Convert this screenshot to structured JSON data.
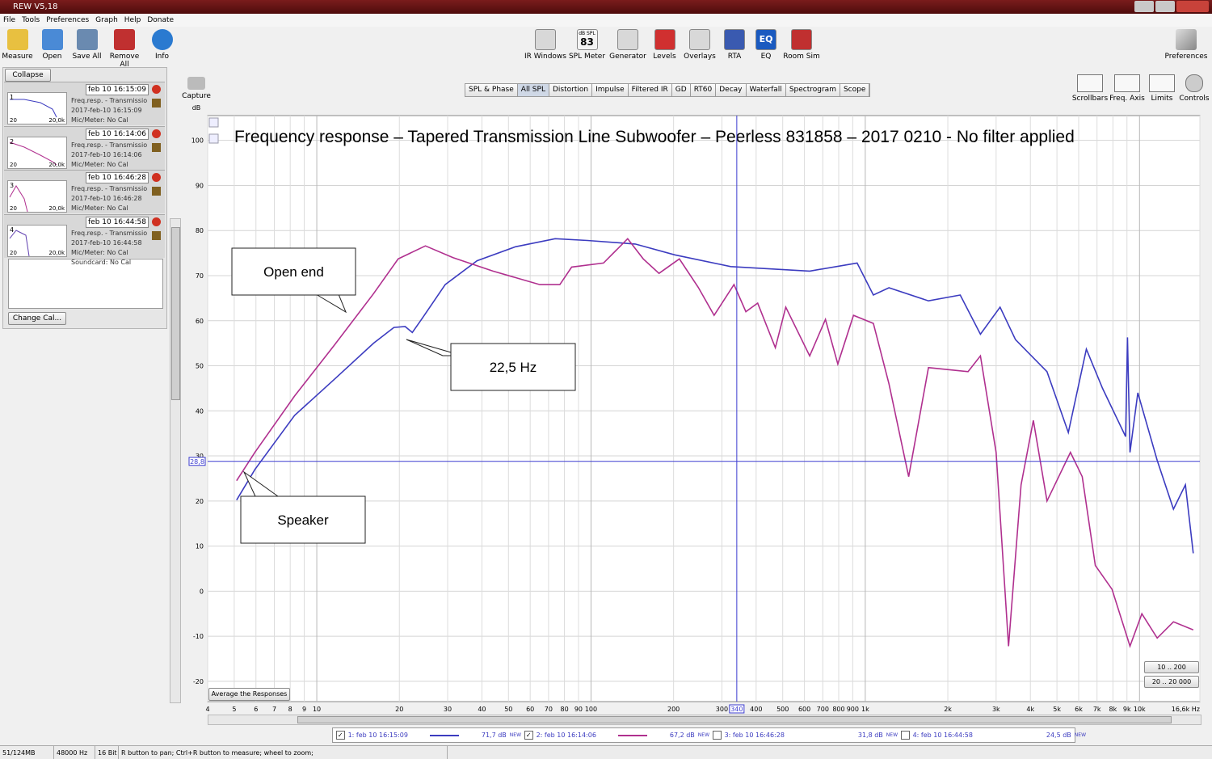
{
  "window_title": "REW V5,18",
  "menu": [
    "File",
    "Tools",
    "Preferences",
    "Graph",
    "Help",
    "Donate"
  ],
  "toolbar_left": [
    "Measure",
    "Open",
    "Save All",
    "Remove All",
    "Info"
  ],
  "toolbar_center": [
    "IR Windows",
    "SPL Meter",
    "Generator",
    "Levels",
    "Overlays",
    "RTA",
    "EQ",
    "Room Sim"
  ],
  "spl_meter_badge": {
    "unit": "dB SPL",
    "value": 83
  },
  "eq_badge": "EQ",
  "toolbar_right": "Preferences",
  "collapse": "Collapse",
  "measurements": [
    {
      "name": "feb 10 16:15:09",
      "index": 1,
      "thumb_min": 20,
      "thumb_max": "20,0k",
      "lines": [
        "Freq.resp. - Transmissio",
        "2017-feb-10 16:15:09",
        "Mic/Meter: No Cal"
      ]
    },
    {
      "name": "feb 10 16:14:06",
      "index": 2,
      "thumb_min": 20,
      "thumb_max": "20,0k",
      "lines": [
        "Freq.resp. - Transmissio",
        "2017-feb-10 16:14:06",
        "Mic/Meter: No Cal"
      ]
    },
    {
      "name": "feb 10 16:46:28",
      "index": 3,
      "thumb_min": 20,
      "thumb_max": "20,0k",
      "lines": [
        "Freq.resp. - Transmissio",
        "2017-feb-10 16:46:28",
        "Mic/Meter: No Cal"
      ]
    },
    {
      "name": "feb 10 16:44:58",
      "index": 4,
      "thumb_min": 20,
      "thumb_max": "20,0k",
      "lines": [
        "Freq.resp. - Transmissio",
        "2017-feb-10 16:44:58",
        "Mic/Meter: No Cal",
        "Soundcard: No Cal"
      ]
    }
  ],
  "change_cal": "Change Cal...",
  "capture": "Capture",
  "tabs": [
    "SPL & Phase",
    "All SPL",
    "Distortion",
    "Impulse",
    "Filtered IR",
    "GD",
    "RT60",
    "Decay",
    "Waterfall",
    "Spectrogram",
    "Scope"
  ],
  "active_tab": "All SPL",
  "graph_tools": [
    "Scrollbars",
    "Freq. Axis",
    "Limits",
    "Controls"
  ],
  "chart_data": {
    "type": "line",
    "title": "Frequency response – Tapered Transmission Line Subwoofer – Peerless 831858 – 2017 0210 - No filter applied",
    "y_unit": "dB",
    "x_log": true,
    "grid": true,
    "xlim": [
      4,
      16600
    ],
    "ylim": [
      -24.5,
      105.5
    ],
    "xticks": [
      4,
      5,
      6,
      7,
      8,
      9,
      10,
      20,
      30,
      40,
      50,
      60,
      70,
      80,
      90,
      100,
      200,
      300,
      400,
      500,
      600,
      700,
      800,
      900,
      {
        "value": 1000,
        "label": "1k"
      },
      {
        "value": 2000,
        "label": "2k"
      },
      {
        "value": 3000,
        "label": "3k"
      },
      {
        "value": 4000,
        "label": "4k"
      },
      {
        "value": 5000,
        "label": "5k"
      },
      {
        "value": 6000,
        "label": "6k"
      },
      {
        "value": 7000,
        "label": "7k"
      },
      {
        "value": 8000,
        "label": "8k"
      },
      {
        "value": 9000,
        "label": "9k"
      },
      {
        "value": 10000,
        "label": "10k"
      },
      {
        "value": 16600,
        "label": "16,6k Hz"
      }
    ],
    "yticks": [
      -20,
      -10,
      0,
      10,
      20,
      30,
      40,
      50,
      60,
      70,
      80,
      90,
      100
    ],
    "series": [
      {
        "name": "1: feb 10 16:15:09",
        "color": "#3c3cc0",
        "checked": true,
        "level_label": "71,7 dB",
        "level_tag": "NEW",
        "x": [
          5.1,
          5.95,
          8.3,
          11.6,
          16.1,
          19.1,
          21,
          22.3,
          24.1,
          29.4,
          38.4,
          53,
          74,
          97,
          145,
          202,
          323,
          627,
          934,
          1070,
          1220,
          1700,
          2220,
          2630,
          3100,
          3530,
          4600,
          5500,
          6400,
          7330,
          8900,
          9040,
          9230,
          9860,
          11600,
          13300,
          14700,
          15700
        ],
        "values": [
          20.2,
          27,
          39,
          47,
          55,
          58.5,
          58.7,
          57.4,
          60.3,
          68,
          73.3,
          76.4,
          78.2,
          77.8,
          77,
          74.6,
          72,
          71,
          72.8,
          65.7,
          67.3,
          64.4,
          65.7,
          57,
          63,
          55.8,
          48.7,
          35.2,
          53.7,
          45,
          34.3,
          56.3,
          30.8,
          44,
          29,
          18.2,
          23.6,
          8.4
        ]
      },
      {
        "name": "2: feb 10 16:14:06",
        "color": "#b0308f",
        "checked": true,
        "level_label": "67,2 dB",
        "level_tag": "NEW",
        "x": [
          5.1,
          5.95,
          8.3,
          11.6,
          16.1,
          19.8,
          24.9,
          31.4,
          43.9,
          65,
          77,
          85,
          111,
          136,
          155,
          177,
          210,
          246,
          281,
          332,
          367,
          405,
          470,
          513,
          627,
          716,
          794,
          906,
          1070,
          1220,
          1440,
          1700,
          2370,
          2630,
          3000,
          3330,
          3700,
          4100,
          4600,
          5600,
          6180,
          6900,
          7940,
          9230,
          10200,
          11600,
          13300,
          15700
        ],
        "values": [
          24.5,
          30.8,
          43.3,
          54.6,
          66,
          73.7,
          76.6,
          74,
          71,
          68,
          68,
          71.9,
          72.8,
          78.2,
          73.7,
          70.5,
          73.7,
          67.4,
          61.2,
          68,
          62,
          63.9,
          54,
          63,
          52.2,
          60.3,
          50.4,
          61.2,
          59.4,
          46,
          25.4,
          49.6,
          48.7,
          52.2,
          30.8,
          -12.2,
          23.6,
          37.9,
          20,
          30.8,
          25.4,
          5.7,
          0.4,
          -12.2,
          -5,
          -10.4,
          -6.8,
          -8.6
        ]
      }
    ],
    "hidden_series": [
      {
        "name": "3: feb 10 16:46:28",
        "checked": false,
        "level_label": "31,8 dB",
        "level_tag": "NEW"
      },
      {
        "name": "4: feb 10 16:44:58",
        "checked": false,
        "level_label": "24,5 dB",
        "level_tag": "NEW"
      }
    ],
    "cursor": {
      "x": 340,
      "y": {
        "value": 28.8,
        "label": "28,8"
      }
    },
    "annotations": [
      "Open end",
      "22,5 Hz",
      "Speaker"
    ]
  },
  "average_button": "Average the Responses",
  "range_buttons": [
    "10 .. 200",
    "20 .. 20 000"
  ],
  "status": [
    "51/124MB",
    "48000 Hz",
    "16 Bit",
    "R button to pan; Ctrl+R button to measure; wheel to zoom;"
  ]
}
